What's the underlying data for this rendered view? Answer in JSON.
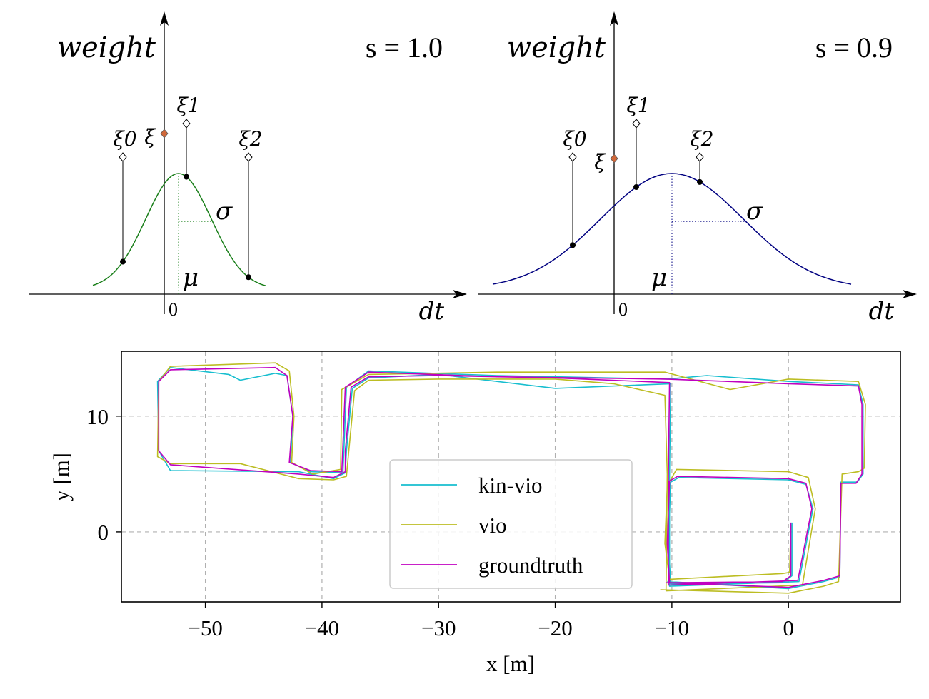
{
  "top_panels": [
    {
      "ylabel": "weight",
      "xlabel": "dt",
      "param": "s = 1.0",
      "s": 1.0,
      "zero": "0",
      "mu_label": "μ",
      "sigma_label": "σ",
      "curve_color": "#1a7f1a",
      "points": [
        {
          "label": "ξ0"
        },
        {
          "label": "ξ1"
        },
        {
          "label": "ξ2"
        }
      ],
      "mean_label": "ξ̄",
      "mean_color": "#d0683a"
    },
    {
      "ylabel": "weight",
      "xlabel": "dt",
      "param": "s = 0.9",
      "s": 0.9,
      "zero": "0",
      "mu_label": "μ",
      "sigma_label": "σ",
      "curve_color": "#000080",
      "points": [
        {
          "label": "ξ0"
        },
        {
          "label": "ξ1"
        },
        {
          "label": "ξ2"
        }
      ],
      "mean_label": "ξ̄",
      "mean_color": "#d0683a"
    }
  ],
  "chart_data": {
    "type": "line",
    "title": "",
    "xlabel": "x [m]",
    "ylabel": "y [m]",
    "xlim": [
      -57.2,
      9.6
    ],
    "ylim": [
      -6.05,
      15.6
    ],
    "xticks": [
      -50,
      -40,
      -30,
      -20,
      -10,
      0
    ],
    "xtick_labels": [
      "−50",
      "−40",
      "−30",
      "−20",
      "−10",
      "0"
    ],
    "yticks": [
      10,
      0
    ],
    "ytick_labels": [
      "10",
      "0"
    ],
    "grid": true,
    "legend_position": "center",
    "series": [
      {
        "name": "kin-vio",
        "color": "#17becf",
        "points": [
          [
            0.3,
            0.8
          ],
          [
            0.3,
            -3.8
          ],
          [
            -0.5,
            -4.4
          ],
          [
            -10.1,
            -4.5
          ],
          [
            -10.3,
            -1
          ],
          [
            -10.1,
            4.3
          ],
          [
            -9.4,
            4.7
          ],
          [
            0,
            4.5
          ],
          [
            1.5,
            4.1
          ],
          [
            2.1,
            2
          ],
          [
            0.9,
            -4.3
          ],
          [
            -10.2,
            -4.7
          ],
          [
            -10.2,
            4.9
          ],
          [
            -10.1,
            12.8
          ],
          [
            -20,
            12.4
          ],
          [
            -30,
            13.6
          ],
          [
            -36,
            13.3
          ],
          [
            -37.4,
            12.4
          ],
          [
            -37.9,
            7
          ],
          [
            -38,
            5.1
          ],
          [
            -39,
            4.6
          ],
          [
            -42,
            5.2
          ],
          [
            -53,
            5.3
          ],
          [
            -54,
            7
          ],
          [
            -54.1,
            13
          ],
          [
            -53,
            14.2
          ],
          [
            -48,
            13.6
          ],
          [
            -47,
            13.1
          ],
          [
            -44,
            13.7
          ],
          [
            -43,
            13.5
          ],
          [
            -42.5,
            10
          ],
          [
            -42.7,
            6
          ],
          [
            -41,
            5.2
          ],
          [
            -38.2,
            5.1
          ],
          [
            -37.9,
            12.5
          ],
          [
            -36,
            13.9
          ],
          [
            -25,
            13.5
          ],
          [
            -10.4,
            13.2
          ],
          [
            -7,
            13.5
          ],
          [
            0,
            13
          ],
          [
            6,
            12.7
          ],
          [
            6.4,
            11
          ],
          [
            6.4,
            5
          ],
          [
            5.9,
            4.3
          ],
          [
            4.5,
            4.3
          ],
          [
            4.4,
            -3.9
          ],
          [
            3,
            -4.3
          ],
          [
            0,
            -4.9
          ],
          [
            -10.4,
            -4.3
          ]
        ]
      },
      {
        "name": "vio",
        "color": "#bcbd22",
        "points": [
          [
            0.2,
            0.6
          ],
          [
            0.1,
            -3.5
          ],
          [
            -0.5,
            -3.6
          ],
          [
            -10.2,
            -4.1
          ],
          [
            -10.6,
            -1
          ],
          [
            -10.4,
            4
          ],
          [
            -9.6,
            5.4
          ],
          [
            0,
            5.2
          ],
          [
            1.7,
            4.7
          ],
          [
            2.3,
            2
          ],
          [
            1.2,
            -4.6
          ],
          [
            -10.5,
            -5.1
          ],
          [
            -10.4,
            5
          ],
          [
            -10.6,
            11.8
          ],
          [
            -15,
            12.8
          ],
          [
            -20,
            13.2
          ],
          [
            -30,
            13.2
          ],
          [
            -36,
            13.1
          ],
          [
            -37.2,
            12.2
          ],
          [
            -37.7,
            7
          ],
          [
            -37.9,
            4.8
          ],
          [
            -39,
            4.5
          ],
          [
            -42,
            4.6
          ],
          [
            -47,
            5.9
          ],
          [
            -53,
            5.9
          ],
          [
            -54.1,
            6.5
          ],
          [
            -54,
            13
          ],
          [
            -53,
            14.3
          ],
          [
            -44,
            14.6
          ],
          [
            -42.8,
            13.9
          ],
          [
            -42.4,
            10
          ],
          [
            -42.6,
            6
          ],
          [
            -40.8,
            5
          ],
          [
            -38.4,
            5.4
          ],
          [
            -38.3,
            12.3
          ],
          [
            -36,
            13.6
          ],
          [
            -25,
            13.8
          ],
          [
            -10.6,
            13.8
          ],
          [
            -5,
            12.3
          ],
          [
            0,
            13.2
          ],
          [
            6,
            13
          ],
          [
            6.6,
            11
          ],
          [
            6.5,
            5.5
          ],
          [
            6,
            5.2
          ],
          [
            4.6,
            5
          ],
          [
            4.3,
            -4.3
          ],
          [
            3,
            -4.7
          ],
          [
            0,
            -5.3
          ],
          [
            -11,
            -5
          ]
        ]
      },
      {
        "name": "groundtruth",
        "color": "#c000c0",
        "points": [
          [
            0.2,
            0.8
          ],
          [
            0.2,
            -3.8
          ],
          [
            -0.5,
            -4.3
          ],
          [
            -10.2,
            -4.4
          ],
          [
            -10.4,
            -1
          ],
          [
            -10.2,
            4.4
          ],
          [
            -9.5,
            4.8
          ],
          [
            0,
            4.6
          ],
          [
            1.5,
            4.2
          ],
          [
            2,
            2
          ],
          [
            0.8,
            -4.2
          ],
          [
            -10.3,
            -4.6
          ],
          [
            -10.3,
            4.8
          ],
          [
            -10.2,
            12.9
          ],
          [
            -20,
            13.3
          ],
          [
            -30,
            13.5
          ],
          [
            -36,
            13.4
          ],
          [
            -37.5,
            12.5
          ],
          [
            -38,
            7
          ],
          [
            -38,
            5.2
          ],
          [
            -39,
            4.7
          ],
          [
            -42,
            5
          ],
          [
            -53,
            5.8
          ],
          [
            -54,
            7
          ],
          [
            -54,
            13
          ],
          [
            -53,
            14
          ],
          [
            -44,
            14.2
          ],
          [
            -43,
            13.5
          ],
          [
            -42.5,
            10
          ],
          [
            -42.8,
            6
          ],
          [
            -41,
            5.3
          ],
          [
            -38.3,
            5.2
          ],
          [
            -38,
            12.5
          ],
          [
            -36,
            13.8
          ],
          [
            -25,
            13.4
          ],
          [
            -10.5,
            13.2
          ],
          [
            0,
            12.8
          ],
          [
            6,
            12.6
          ],
          [
            6.3,
            11
          ],
          [
            6.3,
            5
          ],
          [
            5.8,
            4.2
          ],
          [
            4.5,
            4.2
          ],
          [
            4.4,
            -3.8
          ],
          [
            3,
            -4.2
          ],
          [
            0,
            -4.8
          ],
          [
            -10.5,
            -4.4
          ]
        ]
      }
    ]
  }
}
